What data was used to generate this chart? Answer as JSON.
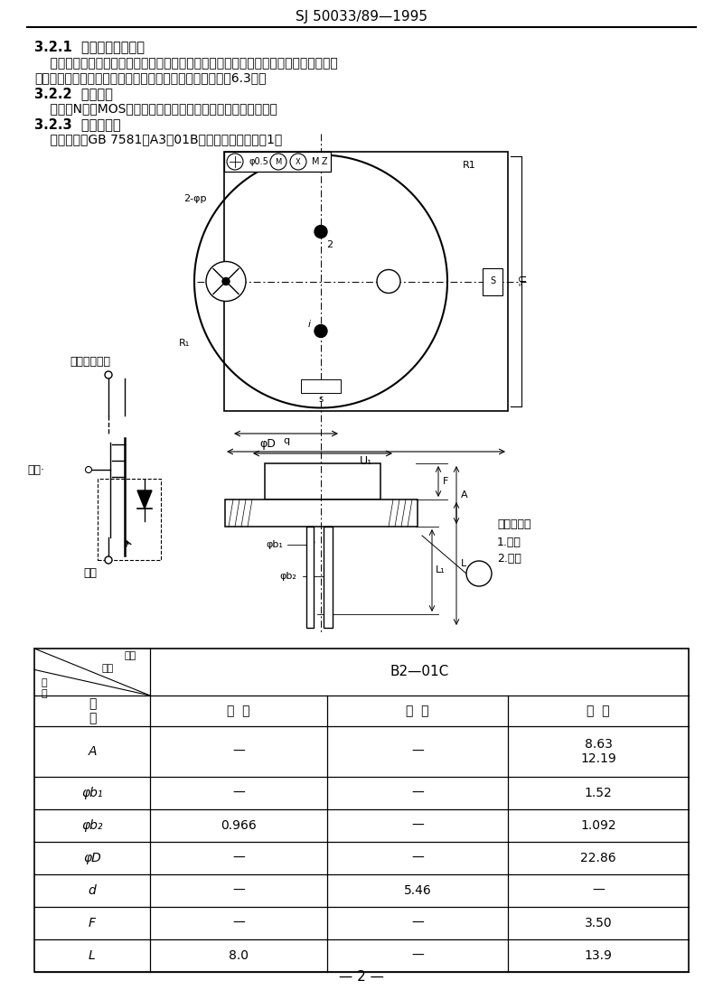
{
  "title": "SJ 50033/89—1995",
  "page_bg": "#ffffff",
  "text_color": "#000000",
  "page_num": "— 2 —",
  "sec1_heading": "3.2.1  引出端材料和涂层",
  "sec1_line1": "    引出端材料应为可伐或铜。引出端表面涂层应为镀金、镀锡或浸锡。对引出端材料和涂",
  "sec1_line2": "层要求选择或另有要求时，在合同或订单中应明确规定（规6.3）。",
  "sec2_heading": "3.2.2  器件结构",
  "sec2_line1": "    采用硅N沟道MOS增强型外延平面结构。不允许多个芯片结构。",
  "sec3_heading": "3.2.3  外形尺十寸",
  "sec3_line1": "    外形尺寸按GB 7581的A3－01B型及如下规定，见图1。",
  "label_drain": "漏极（管壳）",
  "label_gate": "栅极",
  "label_source": "源极",
  "label_lead_strength": "引出端强度",
  "label_gate2": "1.栅极",
  "label_source2": "2.源极",
  "table_b2": "B2—01C",
  "table_min": "最  小",
  "table_nom": "标  称",
  "table_max": "最  大",
  "table_sym": "符\n号",
  "table_header_diag_top": "代号",
  "table_header_diag_mid": "尺寸",
  "table_header_diag_bot": "符",
  "table_header_diag_num": "号",
  "rows": [
    [
      "A",
      "—",
      "—",
      "8.63\n12.19"
    ],
    [
      "φb₁",
      "—",
      "—",
      "1.52"
    ],
    [
      "φb₂",
      "0.966",
      "—",
      "1.092"
    ],
    [
      "φD",
      "—",
      "—",
      "22.86"
    ],
    [
      "d",
      "—",
      "5.46",
      "—"
    ],
    [
      "F",
      "—",
      "—",
      "3.50"
    ],
    [
      "L",
      "8.0",
      "—",
      "13.9"
    ]
  ]
}
